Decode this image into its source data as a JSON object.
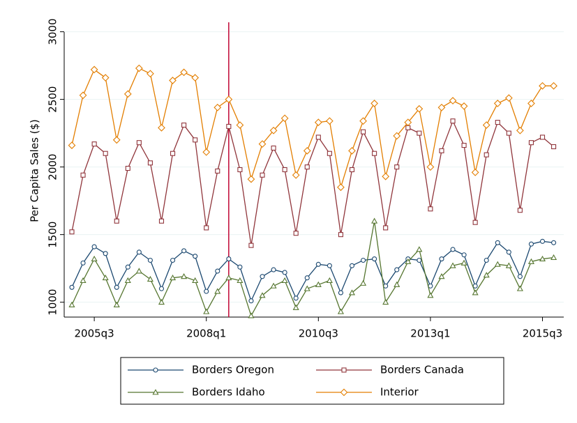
{
  "chart_data": {
    "type": "line",
    "y_label": "Per Capita Sales ($)",
    "categories": [
      null,
      null,
      "2005q3",
      null,
      null,
      null,
      null,
      null,
      null,
      null,
      null,
      null,
      "2008q1",
      null,
      null,
      null,
      null,
      null,
      null,
      null,
      null,
      null,
      "2010q3",
      null,
      null,
      null,
      null,
      null,
      null,
      null,
      null,
      null,
      "2013q1",
      null,
      null,
      null,
      null,
      null,
      null,
      null,
      null,
      null,
      "2015q3",
      null
    ],
    "ylim": [
      890,
      3070
    ],
    "yticks": [
      1000,
      1500,
      2000,
      2500,
      3000
    ],
    "grid": true,
    "vline": 14,
    "vline_color": "#c10534",
    "series": [
      {
        "name": "Borders Oregon",
        "color": "#1a476f",
        "marker": "circle",
        "values": [
          1110,
          1290,
          1410,
          1360,
          1110,
          1260,
          1370,
          1310,
          1100,
          1310,
          1380,
          1340,
          1080,
          1230,
          1320,
          1260,
          1010,
          1190,
          1240,
          1220,
          1030,
          1180,
          1280,
          1270,
          1070,
          1270,
          1310,
          1320,
          1120,
          1240,
          1320,
          1310,
          1120,
          1320,
          1390,
          1350,
          1120,
          1310,
          1440,
          1370,
          1190,
          1430,
          1450,
          1440
        ]
      },
      {
        "name": "Borders Canada",
        "color": "#90353b",
        "marker": "square",
        "values": [
          1520,
          1940,
          2170,
          2100,
          1600,
          1990,
          2180,
          2030,
          1600,
          2100,
          2310,
          2200,
          1550,
          1970,
          2300,
          1980,
          1420,
          1940,
          2140,
          1980,
          1510,
          2000,
          2220,
          2100,
          1500,
          1980,
          2260,
          2100,
          1550,
          2000,
          2290,
          2250,
          1690,
          2120,
          2340,
          2160,
          1590,
          2090,
          2330,
          2250,
          1680,
          2180,
          2220,
          2150
        ]
      },
      {
        "name": "Borders Idaho",
        "color": "#55752f",
        "marker": "triangle",
        "values": [
          980,
          1160,
          1320,
          1180,
          980,
          1160,
          1230,
          1170,
          1000,
          1180,
          1190,
          1160,
          930,
          1080,
          1180,
          1160,
          900,
          1050,
          1120,
          1160,
          960,
          1100,
          1130,
          1160,
          930,
          1070,
          1140,
          1600,
          1000,
          1130,
          1300,
          1390,
          1050,
          1190,
          1270,
          1290,
          1070,
          1200,
          1280,
          1270,
          1100,
          1300,
          1320,
          1330
        ]
      },
      {
        "name": "Interior",
        "color": "#e37e00",
        "marker": "diamond",
        "values": [
          2160,
          2530,
          2720,
          2660,
          2200,
          2540,
          2730,
          2690,
          2290,
          2640,
          2700,
          2660,
          2110,
          2440,
          2500,
          2310,
          1910,
          2170,
          2270,
          2360,
          1940,
          2120,
          2330,
          2340,
          1850,
          2120,
          2340,
          2470,
          1930,
          2230,
          2330,
          2430,
          2000,
          2440,
          2490,
          2450,
          1960,
          2310,
          2470,
          2510,
          2270,
          2470,
          2600,
          2600
        ]
      }
    ]
  }
}
